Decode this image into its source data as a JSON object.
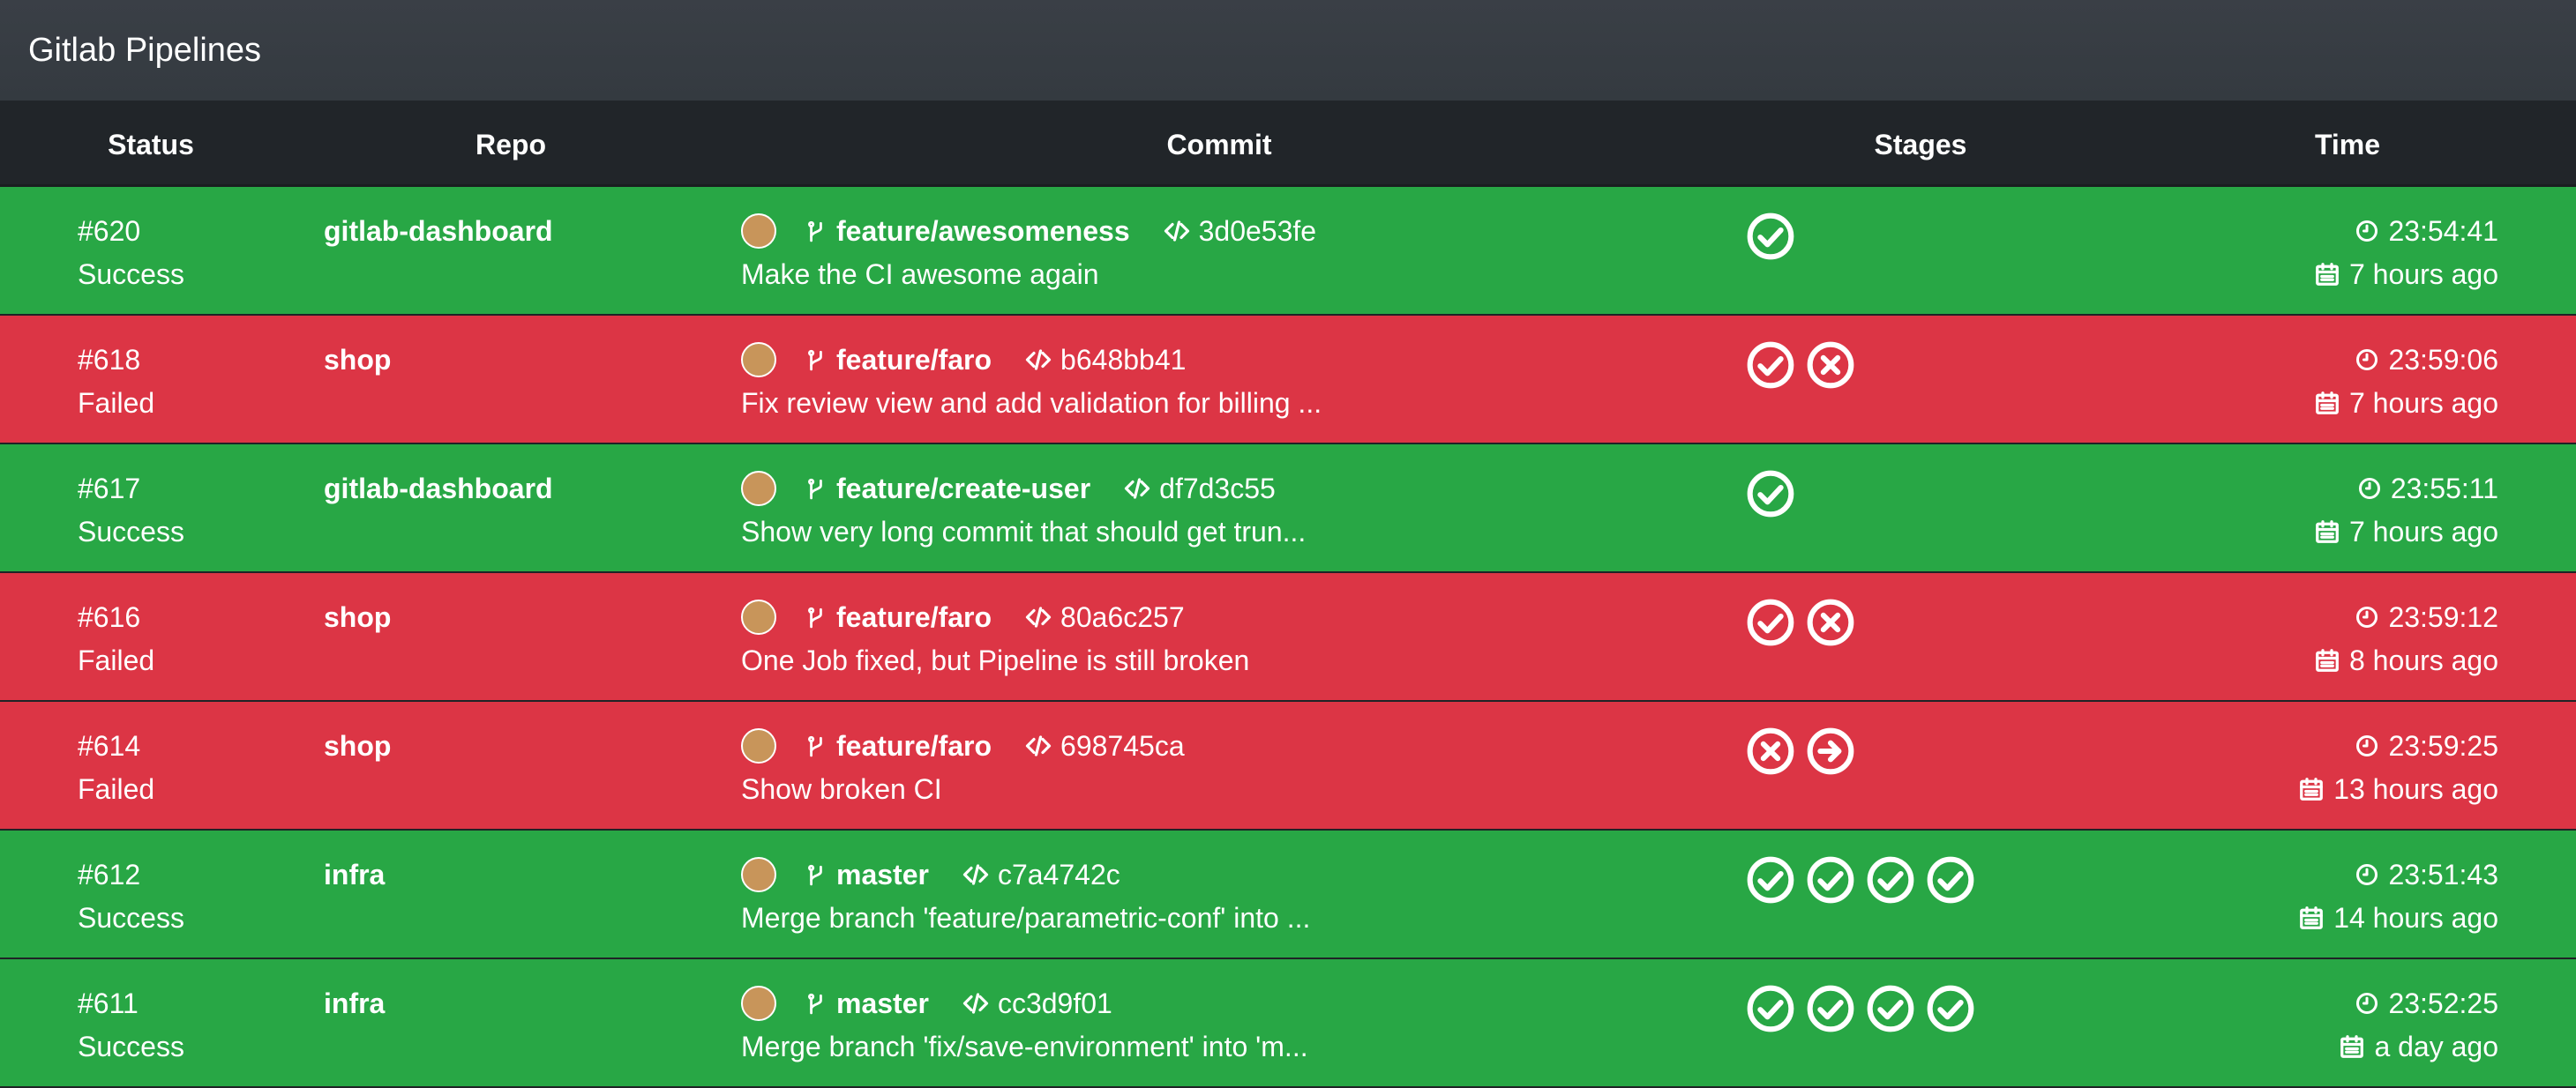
{
  "header": {
    "title": "Gitlab Pipelines"
  },
  "table": {
    "columns": [
      "Status",
      "Repo",
      "Commit",
      "Stages",
      "Time"
    ],
    "rows": [
      {
        "id": "#620",
        "status": "Success",
        "repo": "gitlab-dashboard",
        "branch": "feature/awesomeness",
        "commit": "3d0e53fe",
        "message": "Make the CI awesome again",
        "stages": [
          "success"
        ],
        "time": "23:54:41",
        "ago": "7 hours ago"
      },
      {
        "id": "#618",
        "status": "Failed",
        "repo": "shop",
        "branch": "feature/faro",
        "commit": "b648bb41",
        "message": "Fix review view and add validation for billing ...",
        "stages": [
          "success",
          "failed"
        ],
        "time": "23:59:06",
        "ago": "7 hours ago"
      },
      {
        "id": "#617",
        "status": "Success",
        "repo": "gitlab-dashboard",
        "branch": "feature/create-user",
        "commit": "df7d3c55",
        "message": "Show very long commit that should get trun...",
        "stages": [
          "success"
        ],
        "time": "23:55:11",
        "ago": "7 hours ago"
      },
      {
        "id": "#616",
        "status": "Failed",
        "repo": "shop",
        "branch": "feature/faro",
        "commit": "80a6c257",
        "message": "One Job fixed, but Pipeline is still broken",
        "stages": [
          "success",
          "failed"
        ],
        "time": "23:59:12",
        "ago": "8 hours ago"
      },
      {
        "id": "#614",
        "status": "Failed",
        "repo": "shop",
        "branch": "feature/faro",
        "commit": "698745ca",
        "message": "Show broken CI",
        "stages": [
          "failed",
          "skipped"
        ],
        "time": "23:59:25",
        "ago": "13 hours ago"
      },
      {
        "id": "#612",
        "status": "Success",
        "repo": "infra",
        "branch": "master",
        "commit": "c7a4742c",
        "message": "Merge branch 'feature/parametric-conf' into ...",
        "stages": [
          "success",
          "success",
          "success",
          "success"
        ],
        "time": "23:51:43",
        "ago": "14 hours ago"
      },
      {
        "id": "#611",
        "status": "Success",
        "repo": "infra",
        "branch": "master",
        "commit": "cc3d9f01",
        "message": "Merge branch 'fix/save-environment' into 'm...",
        "stages": [
          "success",
          "success",
          "success",
          "success"
        ],
        "time": "23:52:25",
        "ago": "a day ago"
      }
    ]
  }
}
